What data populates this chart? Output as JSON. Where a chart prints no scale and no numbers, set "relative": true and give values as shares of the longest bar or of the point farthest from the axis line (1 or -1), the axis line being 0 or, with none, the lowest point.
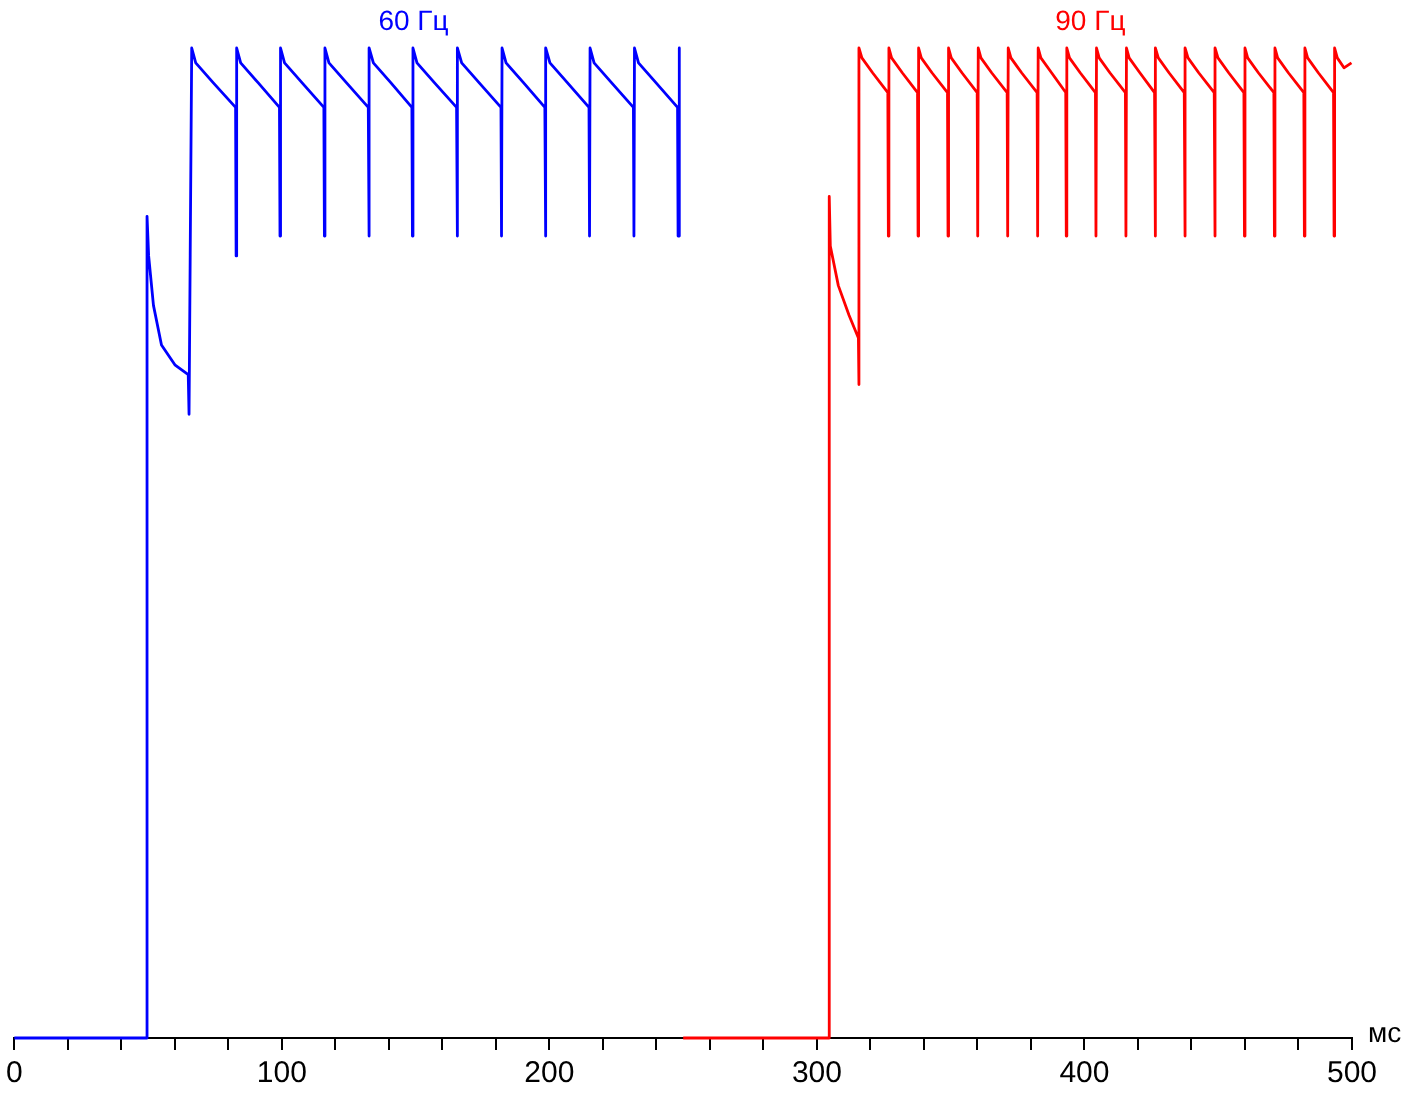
{
  "chart_data": {
    "type": "line",
    "relative": true,
    "xlabel": "мс",
    "xlim": [
      0,
      500
    ],
    "xticks": [
      0,
      {
        "value": 20,
        "label": null
      },
      {
        "value": 40,
        "label": null
      },
      {
        "value": 60,
        "label": null
      },
      {
        "value": 80,
        "label": null
      },
      100,
      {
        "value": 120,
        "label": null
      },
      {
        "value": 140,
        "label": null
      },
      {
        "value": 160,
        "label": null
      },
      {
        "value": 180,
        "label": null
      },
      200,
      {
        "value": 220,
        "label": null
      },
      {
        "value": 240,
        "label": null
      },
      {
        "value": 260,
        "label": null
      },
      {
        "value": 280,
        "label": null
      },
      300,
      {
        "value": 320,
        "label": null
      },
      {
        "value": 340,
        "label": null
      },
      {
        "value": 360,
        "label": null
      },
      {
        "value": 380,
        "label": null
      },
      400,
      {
        "value": 420,
        "label": null
      },
      {
        "value": 440,
        "label": null
      },
      {
        "value": 460,
        "label": null
      },
      {
        "value": 480,
        "label": null
      },
      500
    ],
    "grid": false,
    "legend": false,
    "series": [
      {
        "name": "60 Гц",
        "color": "#0000ff",
        "x": [
          0,
          49.4,
          49.6,
          50.2,
          52,
          55,
          60,
          65,
          65.3,
          66.3,
          67.8,
          74.3,
          82.7,
          82.9,
          83.1,
          84.6,
          91.1,
          99.1,
          99.3,
          99.5,
          101,
          107.5,
          115.7,
          115.9,
          116.1,
          117.6,
          124.1,
          132.3,
          132.5,
          132.7,
          134.2,
          140.7,
          148.6,
          148.8,
          149,
          150.5,
          157,
          165.3,
          165.5,
          165.7,
          167.2,
          173.7,
          181.9,
          182.1,
          182.3,
          183.8,
          190.3,
          198.3,
          198.5,
          198.7,
          200.2,
          206.7,
          214.8,
          215,
          215.2,
          216.7,
          223.2,
          231.4,
          231.6,
          231.8,
          233.3,
          239.8,
          247.9,
          248.1,
          248.3,
          248.8
        ],
        "values": [
          0,
          0,
          0.83,
          0.79,
          0.74,
          0.7,
          0.68,
          0.67,
          0.63,
          1,
          0.985,
          0.965,
          0.94,
          0.79,
          1,
          0.985,
          0.965,
          0.94,
          0.81,
          1,
          0.985,
          0.965,
          0.94,
          0.81,
          1,
          0.985,
          0.965,
          0.94,
          0.81,
          1,
          0.985,
          0.965,
          0.94,
          0.81,
          1,
          0.985,
          0.965,
          0.94,
          0.81,
          1,
          0.985,
          0.965,
          0.94,
          0.81,
          1,
          0.985,
          0.965,
          0.94,
          0.81,
          1,
          0.985,
          0.965,
          0.94,
          0.81,
          1,
          0.985,
          0.965,
          0.94,
          0.81,
          1,
          0.985,
          0.965,
          0.94,
          0.81,
          1,
          0.995
        ]
      },
      {
        "name": "90 Гц",
        "color": "#ff0000",
        "x": [
          250,
          304.4,
          304.6,
          305,
          308,
          312,
          315.5,
          315.6,
          315.8,
          316.8,
          320.8,
          326.5,
          326.7,
          326.9,
          327.9,
          331.9,
          337.6,
          337.8,
          338,
          339,
          343,
          348.8,
          349,
          349.2,
          350.2,
          354.2,
          359.9,
          360.1,
          360.3,
          361.3,
          365.3,
          371.1,
          371.3,
          371.5,
          372.5,
          376.5,
          382.3,
          382.5,
          382.7,
          383.7,
          387.7,
          393,
          393.2,
          393.4,
          394.4,
          398.4,
          404.1,
          404.3,
          404.5,
          405.5,
          409.5,
          415.3,
          415.5,
          415.7,
          416.7,
          420.7,
          426.2,
          426.4,
          426.6,
          427.6,
          431.6,
          437.3,
          437.5,
          437.7,
          438.7,
          442.7,
          448.5,
          448.7,
          448.9,
          449.9,
          453.9,
          459.6,
          459.8,
          460,
          461,
          465,
          470.8,
          471,
          471.2,
          472.2,
          476.2,
          482,
          482.2,
          482.4,
          483.4,
          487.4,
          493.1,
          493.3,
          493.5,
          494.5,
          497,
          499.8
        ],
        "values": [
          0,
          0,
          0.85,
          0.8,
          0.76,
          0.73,
          0.707,
          0.66,
          1,
          0.99,
          0.975,
          0.955,
          0.81,
          1,
          0.99,
          0.975,
          0.955,
          0.81,
          1,
          0.99,
          0.975,
          0.955,
          0.81,
          1,
          0.99,
          0.975,
          0.955,
          0.81,
          1,
          0.99,
          0.975,
          0.955,
          0.81,
          1,
          0.99,
          0.975,
          0.955,
          0.81,
          1,
          0.99,
          0.975,
          0.955,
          0.81,
          1,
          0.99,
          0.975,
          0.955,
          0.81,
          1,
          0.99,
          0.975,
          0.955,
          0.81,
          1,
          0.99,
          0.975,
          0.955,
          0.81,
          1,
          0.99,
          0.975,
          0.955,
          0.81,
          1,
          0.99,
          0.975,
          0.955,
          0.81,
          1,
          0.99,
          0.975,
          0.955,
          0.81,
          1,
          0.99,
          0.975,
          0.955,
          0.81,
          1,
          0.99,
          0.975,
          0.955,
          0.81,
          1,
          0.99,
          0.975,
          0.955,
          0.81,
          1,
          0.99,
          0.98,
          0.985
        ]
      }
    ]
  }
}
